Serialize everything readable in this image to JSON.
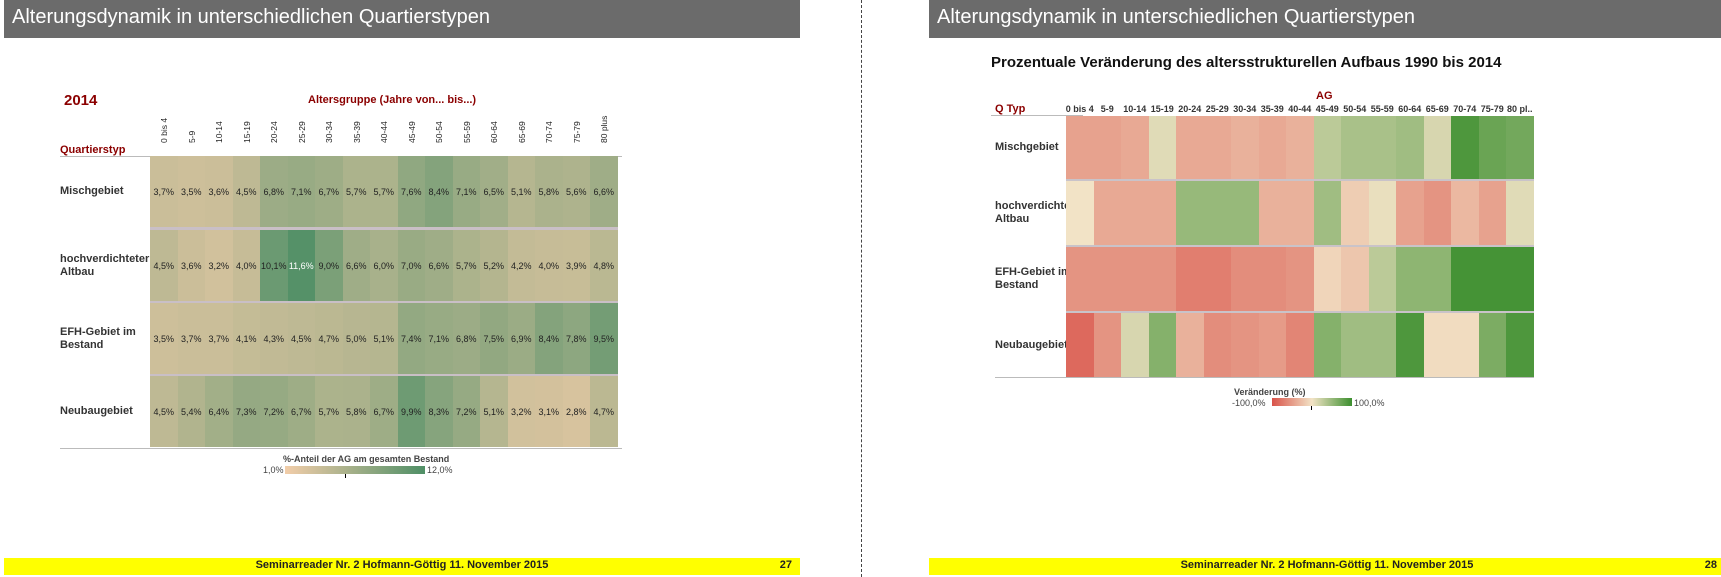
{
  "left_slide": {
    "title": "Alterungsdynamik in unterschiedlichen Quartierstypen",
    "year": "2014",
    "axis_title": "Altersgruppe (Jahre von... bis...)",
    "row_axis_label": "Quartierstyp",
    "legend": {
      "title": "%-Anteil der AG am gesamten Bestand",
      "min": "1,0%",
      "max": "12,0%"
    },
    "footer": "Seminarreader Nr. 2 Hofmann-Göttig 11. November 2015",
    "page": "27"
  },
  "right_slide": {
    "title": "Alterungsdynamik in unterschiedlichen Quartierstypen",
    "subtitle": "Prozentuale Veränderung des altersstrukturellen Aufbaus 1990 bis 2014",
    "col_axis_label": "AG",
    "row_axis_label": "Q Typ",
    "legend": {
      "title": "Veränderung  (%)",
      "min": "-100,0%",
      "max": "100,0%"
    },
    "footer": "Seminarreader Nr. 2 Hofmann-Göttig 11. November 2015",
    "page": "28"
  },
  "chart_data": [
    {
      "type": "heatmap",
      "title": "2014",
      "xlabel": "Altersgruppe (Jahre von... bis...)",
      "ylabel": "Quartierstyp",
      "categories": [
        "0 bis 4",
        "5-9",
        "10-14",
        "15-19",
        "20-24",
        "25-29",
        "30-34",
        "35-39",
        "40-44",
        "45-49",
        "50-54",
        "55-59",
        "60-64",
        "65-69",
        "70-74",
        "75-79",
        "80 plus"
      ],
      "rows": [
        "Mischgebiet",
        "hochverdichteter Altbau",
        "EFH-Gebiet im Bestand",
        "Neubaugebiet"
      ],
      "row_display": [
        [
          "Mischgebiet"
        ],
        [
          "hochverdichteter",
          "Altbau"
        ],
        [
          "EFH-Gebiet im",
          "Bestand"
        ],
        [
          "Neubaugebiet"
        ]
      ],
      "values": [
        [
          3.7,
          3.5,
          3.6,
          4.5,
          6.8,
          7.1,
          6.7,
          5.7,
          5.7,
          7.6,
          8.4,
          7.1,
          6.5,
          5.1,
          5.8,
          5.6,
          6.6
        ],
        [
          4.5,
          3.6,
          3.2,
          4.0,
          10.1,
          11.6,
          9.0,
          6.6,
          6.0,
          7.0,
          6.6,
          5.7,
          5.2,
          4.2,
          4.0,
          3.9,
          4.8
        ],
        [
          3.5,
          3.7,
          3.7,
          4.1,
          4.3,
          4.5,
          4.7,
          5.0,
          5.1,
          7.4,
          7.1,
          6.8,
          7.5,
          6.9,
          8.4,
          7.8,
          9.5
        ],
        [
          4.5,
          5.4,
          6.4,
          7.3,
          7.2,
          6.7,
          5.7,
          5.8,
          6.7,
          9.9,
          8.3,
          7.2,
          5.1,
          3.2,
          3.1,
          2.8,
          4.7
        ]
      ],
      "labels": [
        [
          "3,7%",
          "3,5%",
          "3,6%",
          "4,5%",
          "6,8%",
          "7,1%",
          "6,7%",
          "5,7%",
          "5,7%",
          "7,6%",
          "8,4%",
          "7,1%",
          "6,5%",
          "5,1%",
          "5,8%",
          "5,6%",
          "6,6%"
        ],
        [
          "4,5%",
          "3,6%",
          "3,2%",
          "4,0%",
          "10,1%",
          "11,6%",
          "9,0%",
          "6,6%",
          "6,0%",
          "7,0%",
          "6,6%",
          "5,7%",
          "5,2%",
          "4,2%",
          "4,0%",
          "3,9%",
          "4,8%"
        ],
        [
          "3,5%",
          "3,7%",
          "3,7%",
          "4,1%",
          "4,3%",
          "4,5%",
          "4,7%",
          "5,0%",
          "5,1%",
          "7,4%",
          "7,1%",
          "6,8%",
          "7,5%",
          "6,9%",
          "8,4%",
          "7,8%",
          "9,5%"
        ],
        [
          "4,5%",
          "5,4%",
          "6,4%",
          "7,3%",
          "7,2%",
          "6,7%",
          "5,7%",
          "5,8%",
          "6,7%",
          "9,9%",
          "8,3%",
          "7,2%",
          "5,1%",
          "3,2%",
          "3,1%",
          "2,8%",
          "4,7%"
        ]
      ],
      "color_scale": {
        "min": 1.0,
        "max": 12.0,
        "low": "#f2cda9",
        "high": "#4f8f66"
      }
    },
    {
      "type": "heatmap",
      "title": "Prozentuale Veränderung des altersstrukturellen Aufbaus 1990 bis 2014",
      "xlabel": "AG",
      "ylabel": "Q Typ",
      "categories": [
        "0 bis 4",
        "5-9",
        "10-14",
        "15-19",
        "20-24",
        "25-29",
        "30-34",
        "35-39",
        "40-44",
        "45-49",
        "50-54",
        "55-59",
        "60-64",
        "65-69",
        "70-74",
        "75-79",
        "80 pl.."
      ],
      "rows": [
        "Mischgebiet",
        "hochverdichteter Altbau",
        "EFH-Gebiet im Bestand",
        "Neubaugebiet"
      ],
      "row_display": [
        [
          "Mischgebiet"
        ],
        [
          "hochverdichteter",
          "Altbau"
        ],
        [
          "EFH-Gebiet im",
          "Bestand"
        ],
        [
          "Neubaugebiet"
        ]
      ],
      "values": [
        [
          -45,
          -45,
          -40,
          10,
          -40,
          -40,
          -35,
          -40,
          -35,
          30,
          40,
          40,
          45,
          15,
          90,
          75,
          70
        ],
        [
          0,
          -40,
          -40,
          -40,
          50,
          50,
          50,
          -35,
          -35,
          45,
          -15,
          5,
          -45,
          -55,
          -30,
          -45,
          10
        ],
        [
          -55,
          -55,
          -55,
          -55,
          -70,
          -70,
          -60,
          -60,
          -55,
          -10,
          -20,
          30,
          55,
          55,
          95,
          95,
          95
        ],
        [
          -85,
          -55,
          15,
          60,
          -35,
          -60,
          -55,
          -50,
          -65,
          60,
          45,
          45,
          90,
          -5,
          -5,
          65,
          90
        ]
      ],
      "color_scale": {
        "min": -100,
        "max": 100,
        "low": "#d9534a",
        "mid": "#f2e3c6",
        "high": "#3c8f2e"
      }
    }
  ]
}
